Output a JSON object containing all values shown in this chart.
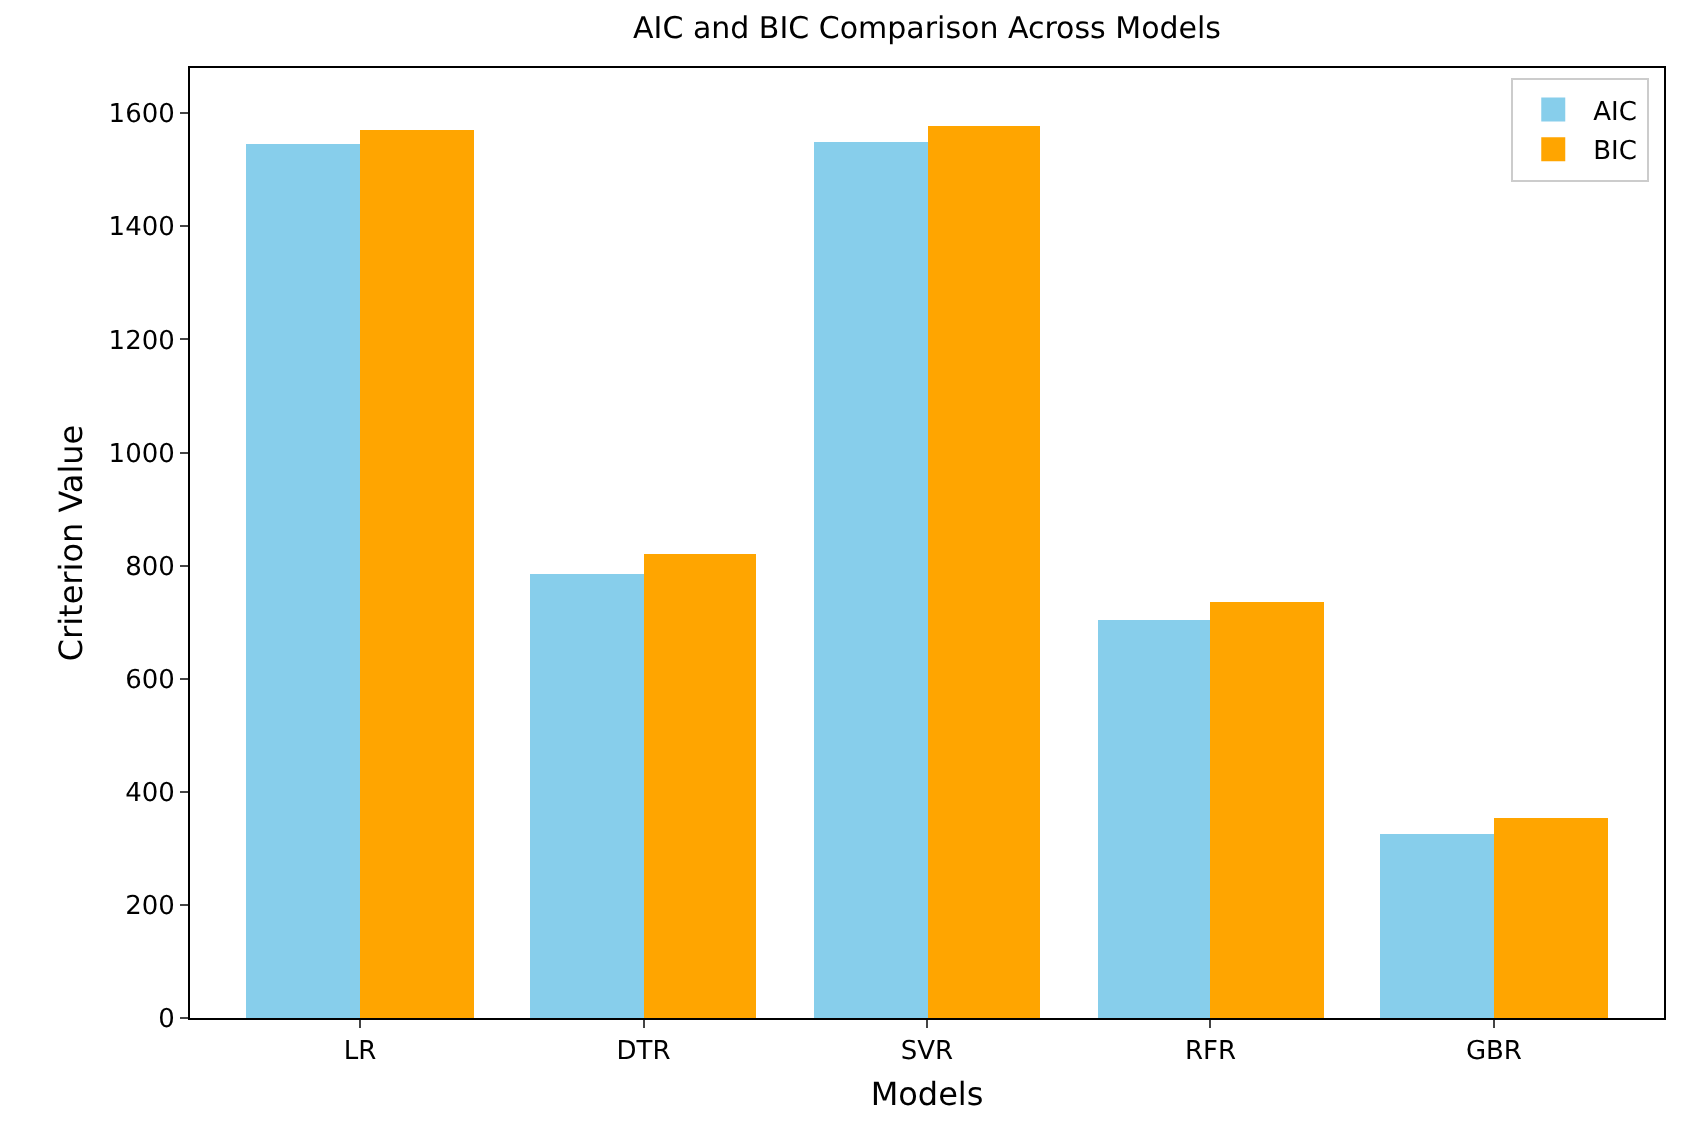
{
  "chart_data": {
    "type": "bar",
    "title": "AIC and BIC Comparison Across Models",
    "xlabel": "Models",
    "ylabel": "Criterion Value",
    "categories": [
      "LR",
      "DTR",
      "SVR",
      "RFR",
      "GBR"
    ],
    "series": [
      {
        "name": "AIC",
        "color": "#87ceeb",
        "values": [
          1544,
          784,
          1550,
          703,
          327
        ]
      },
      {
        "name": "BIC",
        "color": "#ffa500",
        "values": [
          1572,
          819,
          1576,
          735,
          355
        ]
      }
    ],
    "ylim": [
      0,
      1680
    ],
    "yticks": [
      0,
      200,
      400,
      600,
      800,
      1000,
      1200,
      1400,
      1600
    ],
    "grid": false,
    "legend": "top right"
  }
}
